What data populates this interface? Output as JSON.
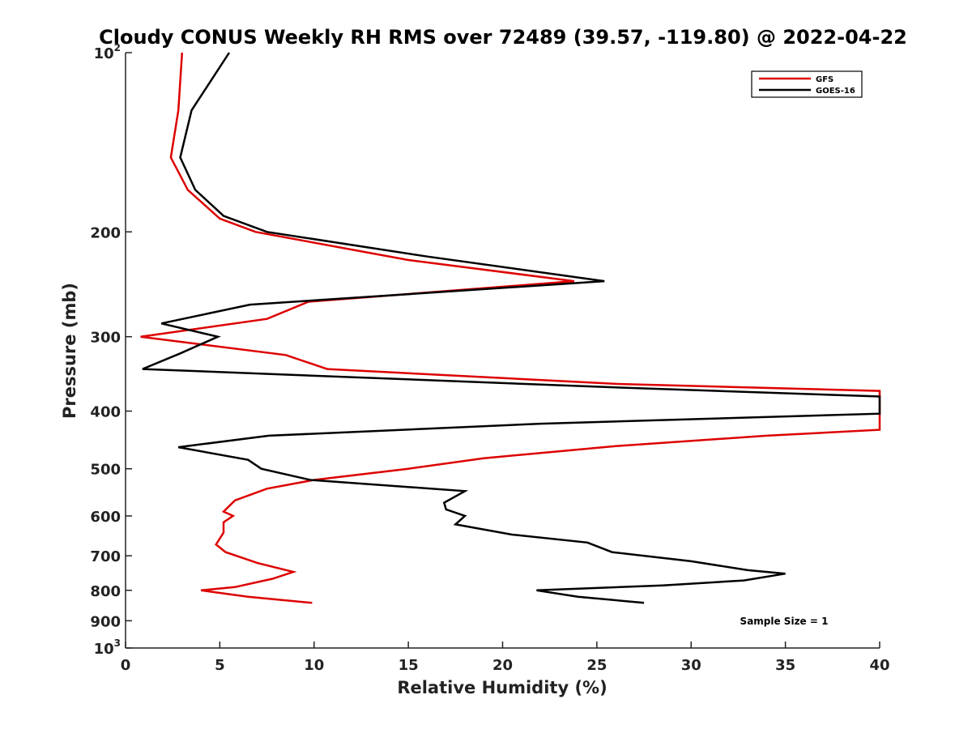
{
  "chart_data": {
    "type": "line",
    "title": "Cloudy CONUS Weekly RH RMS over 72489 (39.57, -119.80) @ 2022-04-22",
    "xlabel": "Relative Humidity (%)",
    "ylabel": "Pressure (mb)",
    "xlim": [
      0,
      40
    ],
    "ylim": [
      100,
      1000
    ],
    "y_scale": "log",
    "y_reversed": true,
    "grid": false,
    "legend_position": "top-right",
    "x_ticks": [
      0,
      5,
      10,
      15,
      20,
      25,
      30,
      35,
      40
    ],
    "x_tick_labels": [
      "0",
      "5",
      "10",
      "15",
      "20",
      "25",
      "30",
      "35",
      "40"
    ],
    "y_ticks": [
      {
        "value": 100,
        "base": "10",
        "exp": "2"
      },
      {
        "value": 200,
        "label": "200"
      },
      {
        "value": 300,
        "label": "300"
      },
      {
        "value": 400,
        "label": "400"
      },
      {
        "value": 500,
        "label": "500"
      },
      {
        "value": 600,
        "label": "600"
      },
      {
        "value": 700,
        "label": "700"
      },
      {
        "value": 800,
        "label": "800"
      },
      {
        "value": 900,
        "label": "900"
      },
      {
        "value": 1000,
        "base": "10",
        "exp": "3"
      }
    ],
    "annotation": "Sample Size = 1",
    "series": [
      {
        "name": "GFS",
        "color": "#dd0000",
        "points": [
          [
            3.0,
            100
          ],
          [
            2.8,
            125
          ],
          [
            2.4,
            150
          ],
          [
            3.3,
            170
          ],
          [
            5.0,
            190
          ],
          [
            6.9,
            200
          ],
          [
            15.0,
            223
          ],
          [
            23.8,
            242
          ],
          [
            9.7,
            262
          ],
          [
            7.5,
            280
          ],
          [
            0.8,
            300
          ],
          [
            8.5,
            322
          ],
          [
            10.7,
            340
          ],
          [
            26.0,
            360
          ],
          [
            40,
            370
          ],
          [
            40,
            430
          ],
          [
            34.0,
            440
          ],
          [
            26.0,
            458
          ],
          [
            19.0,
            480
          ],
          [
            15.0,
            500
          ],
          [
            10.0,
            522
          ],
          [
            7.5,
            540
          ],
          [
            5.8,
            565
          ],
          [
            5.2,
            590
          ],
          [
            5.7,
            600
          ],
          [
            5.2,
            615
          ],
          [
            5.2,
            640
          ],
          [
            4.8,
            670
          ],
          [
            5.3,
            690
          ],
          [
            7.0,
            720
          ],
          [
            8.9,
            745
          ],
          [
            7.8,
            765
          ],
          [
            5.8,
            790
          ],
          [
            4.0,
            800
          ],
          [
            6.5,
            820
          ],
          [
            9.9,
            840
          ]
        ]
      },
      {
        "name": "GOES-16",
        "color": "#000000",
        "points": [
          [
            5.5,
            100
          ],
          [
            3.5,
            125
          ],
          [
            2.9,
            150
          ],
          [
            3.7,
            170
          ],
          [
            5.2,
            188
          ],
          [
            7.5,
            200
          ],
          [
            16.0,
            220
          ],
          [
            25.4,
            242
          ],
          [
            6.6,
            265
          ],
          [
            1.9,
            285
          ],
          [
            4.9,
            300
          ],
          [
            2.9,
            320
          ],
          [
            0.9,
            340
          ],
          [
            26.0,
            365
          ],
          [
            40,
            378
          ],
          [
            40,
            404
          ],
          [
            22.0,
            420
          ],
          [
            7.6,
            440
          ],
          [
            2.8,
            460
          ],
          [
            6.5,
            483
          ],
          [
            7.2,
            500
          ],
          [
            9.8,
            522
          ],
          [
            18.0,
            545
          ],
          [
            16.9,
            570
          ],
          [
            17.0,
            585
          ],
          [
            18.0,
            600
          ],
          [
            17.5,
            620
          ],
          [
            20.5,
            645
          ],
          [
            24.5,
            665
          ],
          [
            25.8,
            690
          ],
          [
            30.0,
            715
          ],
          [
            33.0,
            740
          ],
          [
            35.0,
            750
          ],
          [
            32.8,
            770
          ],
          [
            28.5,
            785
          ],
          [
            21.8,
            800
          ],
          [
            24.0,
            820
          ],
          [
            27.5,
            840
          ]
        ]
      }
    ]
  }
}
